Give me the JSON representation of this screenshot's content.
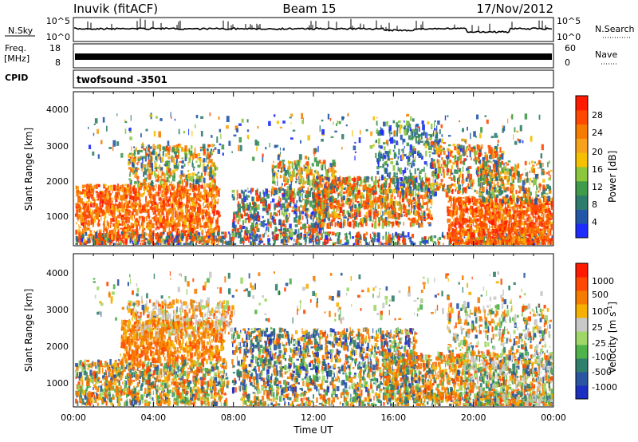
{
  "header": {
    "station": "Inuvik (fitACF)",
    "beam": "Beam 15",
    "date": "17/Nov/2012"
  },
  "status_panels": {
    "nsky": {
      "label": "N.Sky",
      "ticks": [
        "10^5",
        "10^0"
      ],
      "right_label": "N.Search",
      "right_ticks": [
        "10^5",
        "10^0"
      ]
    },
    "freq": {
      "label": "Freq.",
      "unit": "[MHz]",
      "ticks": [
        "18",
        "8"
      ],
      "right_label": "Nave",
      "right_ticks": [
        "60",
        "0"
      ]
    },
    "cpid": {
      "label": "CPID",
      "value": "twofsound  -3501"
    }
  },
  "chart_data": [
    {
      "type": "heatmap",
      "quantity": "power",
      "ylabel": "Slant Range [km]",
      "yticks": [
        "1000",
        "2000",
        "3000",
        "4000"
      ],
      "colorbar": {
        "label": "Power [dB]",
        "ticks": [
          "4",
          "8",
          "12",
          "16",
          "20",
          "24",
          "28"
        ],
        "colors": [
          "#1d2bff",
          "#2456a8",
          "#2e7d6c",
          "#3f9a4a",
          "#8bc63d",
          "#f5c000",
          "#f7a21a",
          "#f57c00",
          "#ff4800",
          "#ff1a00"
        ]
      }
    },
    {
      "type": "heatmap",
      "quantity": "velocity",
      "ylabel": "Slant Range [km]",
      "yticks": [
        "1000",
        "2000",
        "3000",
        "4000"
      ],
      "colorbar": {
        "label": "Velocity  [m s",
        "label_sup": "-1",
        "label_end": "]",
        "ticks": [
          "1000",
          "500",
          "100",
          "25",
          "-25",
          "-100",
          "-500",
          "-1000"
        ],
        "colors": [
          "#1b2fc0",
          "#2a55a3",
          "#2f7f6c",
          "#4fb24a",
          "#9fd668",
          "#c8c8c8",
          "#f5b000",
          "#f57c00",
          "#ff4800",
          "#ff1a00"
        ]
      }
    }
  ],
  "xaxis": {
    "label": "Time UT",
    "ticks": [
      "00:00",
      "04:00",
      "08:00",
      "12:00",
      "16:00",
      "20:00",
      "00:00"
    ]
  }
}
